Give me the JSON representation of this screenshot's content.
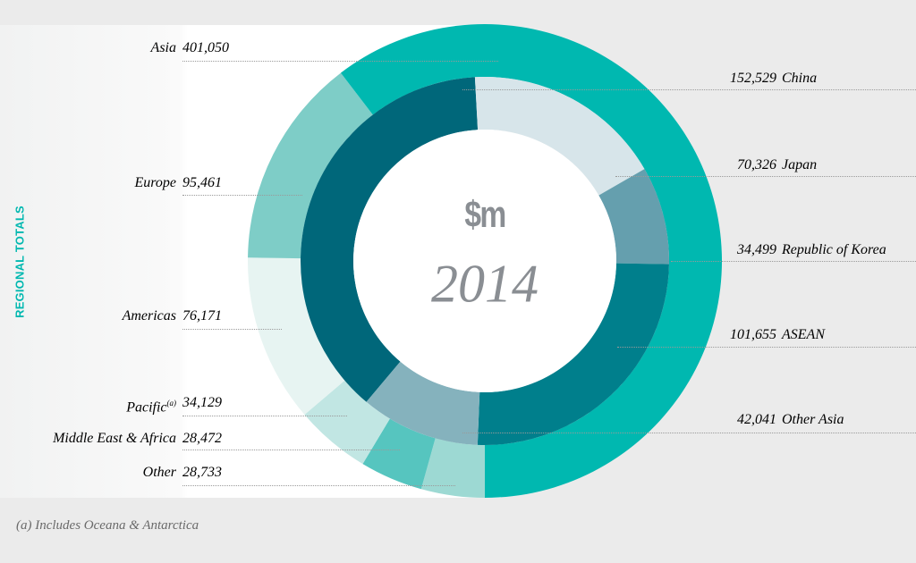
{
  "side_title": "REGIONAL TOTALS",
  "center": {
    "unit": "$m",
    "year": "2014"
  },
  "footnote": "(a) Includes Oceana & Antarctica",
  "chart_data": {
    "type": "donut",
    "unit": "$m",
    "year": "2014",
    "outer_ring": {
      "categories": [
        "Asia",
        "Europe",
        "Americas",
        "Pacific",
        "Middle East & Africa",
        "Other"
      ],
      "labels": [
        "Asia",
        "Europe",
        "Americas",
        "Pacific",
        "Middle East & Africa",
        "Other"
      ],
      "values": [
        401050,
        95461,
        76171,
        34129,
        28472,
        28733
      ],
      "display_values": [
        "401,050",
        "95,461",
        "76,171",
        "34,129",
        "28,472",
        "28,733"
      ],
      "colors": [
        "#00b8b0",
        "#7ecdc7",
        "#e7f4f2",
        "#c1e6e3",
        "#56c5bf",
        "#9dd9d3"
      ],
      "superscripts": [
        "",
        "",
        "",
        "(a)",
        "",
        ""
      ]
    },
    "inner_ring": {
      "parent": "Asia",
      "categories": [
        "China",
        "Japan",
        "Republic of Korea",
        "ASEAN",
        "Other Asia"
      ],
      "values": [
        152529,
        70326,
        34499,
        101655,
        42041
      ],
      "display_values": [
        "152,529",
        "70,326",
        "34,499",
        "101,655",
        "42,041"
      ],
      "colors": [
        "#00677a",
        "#d7e5ea",
        "#659fae",
        "#007f8c",
        "#85b2bd"
      ]
    }
  }
}
